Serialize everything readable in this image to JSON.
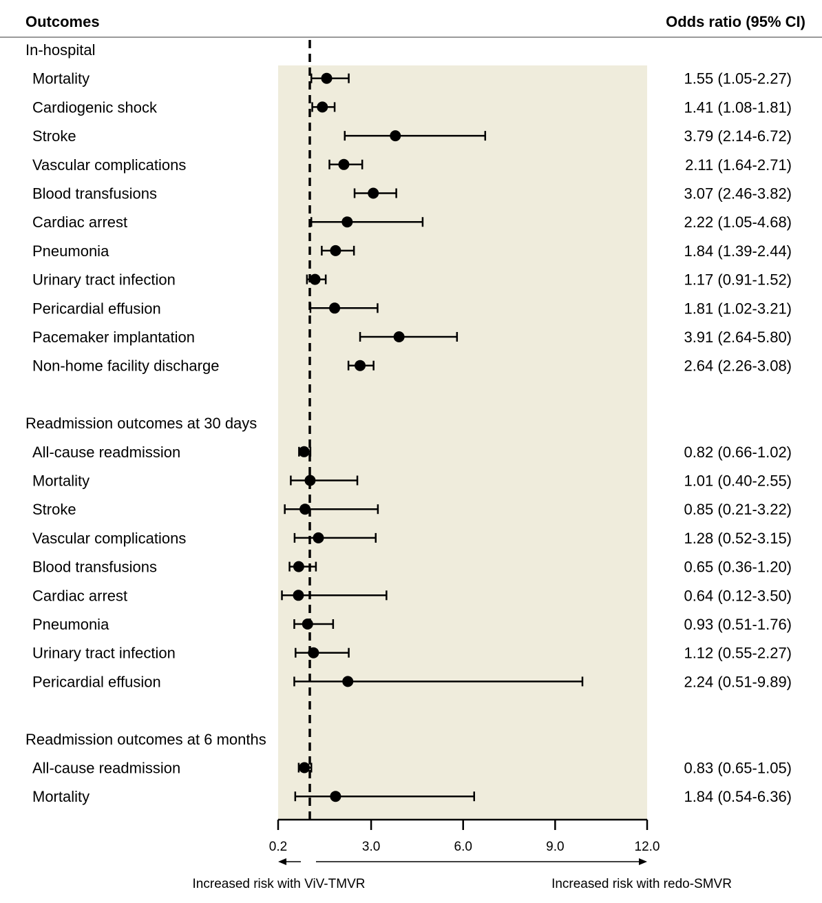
{
  "chart_data": {
    "type": "forest",
    "title": "",
    "header_left": "Outcomes",
    "header_right": "Odds ratio (95% CI)",
    "xlabel": "",
    "reference_line": 1.0,
    "xlim": [
      0.2,
      12.0
    ],
    "x_ticks": [
      "0.2",
      "3.0",
      "6.0",
      "9.0",
      "12.0"
    ],
    "x_tick_values": [
      0.2,
      3.0,
      6.0,
      9.0,
      12.0
    ],
    "direction_left": "Increased risk with ViV-TMVR",
    "direction_right": "Increased risk with redo-SMVR",
    "colors": {
      "panel": "#efecdc",
      "marker": "#000000",
      "divider": "#999999"
    },
    "groups": [
      {
        "name": "In-hospital",
        "rows": [
          {
            "label": "Mortality",
            "or": 1.55,
            "lo": 1.05,
            "hi": 2.27,
            "text": "1.55 (1.05-2.27)"
          },
          {
            "label": "Cardiogenic shock",
            "or": 1.41,
            "lo": 1.08,
            "hi": 1.81,
            "text": "1.41 (1.08-1.81)"
          },
          {
            "label": "Stroke",
            "or": 3.79,
            "lo": 2.14,
            "hi": 6.72,
            "text": "3.79 (2.14-6.72)"
          },
          {
            "label": "Vascular complications",
            "or": 2.11,
            "lo": 1.64,
            "hi": 2.71,
            "text": "2.11 (1.64-2.71)"
          },
          {
            "label": "Blood transfusions",
            "or": 3.07,
            "lo": 2.46,
            "hi": 3.82,
            "text": "3.07 (2.46-3.82)"
          },
          {
            "label": "Cardiac arrest",
            "or": 2.22,
            "lo": 1.05,
            "hi": 4.68,
            "text": "2.22 (1.05-4.68)"
          },
          {
            "label": "Pneumonia",
            "or": 1.84,
            "lo": 1.39,
            "hi": 2.44,
            "text": "1.84 (1.39-2.44)"
          },
          {
            "label": "Urinary tract infection",
            "or": 1.17,
            "lo": 0.91,
            "hi": 1.52,
            "text": "1.17 (0.91-1.52)"
          },
          {
            "label": "Pericardial effusion",
            "or": 1.81,
            "lo": 1.02,
            "hi": 3.21,
            "text": "1.81 (1.02-3.21)"
          },
          {
            "label": "Pacemaker implantation",
            "or": 3.91,
            "lo": 2.64,
            "hi": 5.8,
            "text": "3.91 (2.64-5.80)"
          },
          {
            "label": "Non-home facility discharge",
            "or": 2.64,
            "lo": 2.26,
            "hi": 3.08,
            "text": "2.64 (2.26-3.08)"
          }
        ]
      },
      {
        "name": "Readmission outcomes at 30 days",
        "rows": [
          {
            "label": "All-cause readmission",
            "or": 0.82,
            "lo": 0.66,
            "hi": 1.02,
            "text": "0.82 (0.66-1.02)"
          },
          {
            "label": "Mortality",
            "or": 1.01,
            "lo": 0.4,
            "hi": 2.55,
            "text": "1.01 (0.40-2.55)"
          },
          {
            "label": "Stroke",
            "or": 0.85,
            "lo": 0.21,
            "hi": 3.22,
            "text": "0.85 (0.21-3.22)"
          },
          {
            "label": "Vascular complications",
            "or": 1.28,
            "lo": 0.52,
            "hi": 3.15,
            "text": "1.28 (0.52-3.15)"
          },
          {
            "label": "Blood transfusions",
            "or": 0.65,
            "lo": 0.36,
            "hi": 1.2,
            "text": "0.65 (0.36-1.20)"
          },
          {
            "label": "Cardiac arrest",
            "or": 0.64,
            "lo": 0.12,
            "hi": 3.5,
            "text": "0.64 (0.12-3.50)"
          },
          {
            "label": "Pneumonia",
            "or": 0.93,
            "lo": 0.51,
            "hi": 1.76,
            "text": "0.93 (0.51-1.76)"
          },
          {
            "label": "Urinary tract infection",
            "or": 1.12,
            "lo": 0.55,
            "hi": 2.27,
            "text": "1.12 (0.55-2.27)"
          },
          {
            "label": "Pericardial effusion",
            "or": 2.24,
            "lo": 0.51,
            "hi": 9.89,
            "text": "2.24 (0.51-9.89)"
          }
        ]
      },
      {
        "name": "Readmission outcomes at 6 months",
        "rows": [
          {
            "label": "All-cause readmission",
            "or": 0.83,
            "lo": 0.65,
            "hi": 1.05,
            "text": "0.83 (0.65-1.05)"
          },
          {
            "label": "Mortality",
            "or": 1.84,
            "lo": 0.54,
            "hi": 6.36,
            "text": "1.84 (0.54-6.36)"
          }
        ]
      }
    ]
  }
}
